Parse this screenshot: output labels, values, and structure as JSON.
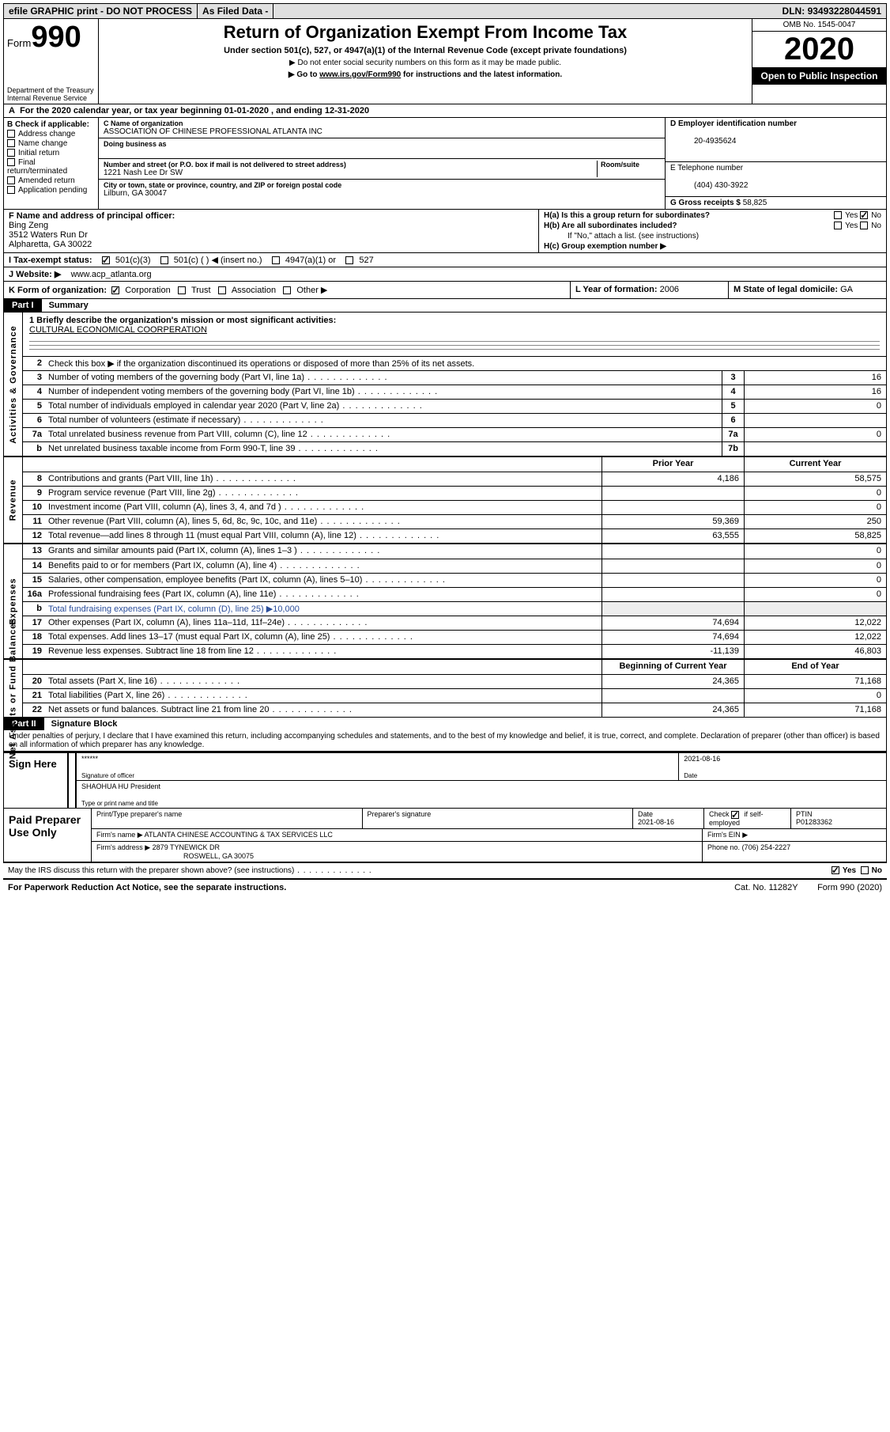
{
  "topbar": {
    "efile": "efile GRAPHIC print - DO NOT PROCESS",
    "asfiled": "As Filed Data -",
    "dln_label": "DLN:",
    "dln": "93493228044591"
  },
  "header": {
    "form": "Form",
    "num": "990",
    "dept": "Department of the Treasury\nInternal Revenue Service",
    "title": "Return of Organization Exempt From Income Tax",
    "sub": "Under section 501(c), 527, or 4947(a)(1) of the Internal Revenue Code (except private foundations)",
    "note1": "▶ Do not enter social security numbers on this form as it may be made public.",
    "note2_pre": "▶ Go to ",
    "note2_link": "www.irs.gov/Form990",
    "note2_post": " for instructions and the latest information.",
    "omb": "OMB No. 1545-0047",
    "year": "2020",
    "opi": "Open to Public Inspection"
  },
  "A": {
    "label": "A",
    "text": "For the 2020 calendar year, or tax year beginning 01-01-2020  , and ending 12-31-2020"
  },
  "B": {
    "label": "B Check if applicable:",
    "opts": [
      "Address change",
      "Name change",
      "Initial return",
      "Final return/terminated",
      "Amended return",
      "Application pending"
    ]
  },
  "C": {
    "namelbl": "C Name of organization",
    "name": "ASSOCIATION OF CHINESE PROFESSIONAL ATLANTA INC",
    "dba_lbl": "Doing business as",
    "addr_lbl": "Number and street (or P.O. box if mail is not delivered to street address)",
    "room_lbl": "Room/suite",
    "addr": "1221 Nash Lee Dr SW",
    "city_lbl": "City or town, state or province, country, and ZIP or foreign postal code",
    "city": "Lilburn, GA  30047"
  },
  "D": {
    "lbl": "D Employer identification number",
    "ein": "20-4935624"
  },
  "E": {
    "lbl": "E Telephone number",
    "val": "(404) 430-3922"
  },
  "G": {
    "lbl": "G Gross receipts $",
    "val": "58,825"
  },
  "F": {
    "lbl": "F  Name and address of principal officer:",
    "name": "Bing Zeng",
    "addr1": "3512 Waters Run Dr",
    "addr2": "Alpharetta, GA  30022"
  },
  "H": {
    "a": "H(a)  Is this a group return for subordinates?",
    "a_yes": "Yes",
    "a_no": "No",
    "b": "H(b)  Are all subordinates included?",
    "b_hint": "If \"No,\" attach a list. (see instructions)",
    "c": "H(c)  Group exemption number ▶"
  },
  "I": {
    "lbl": "I    Tax-exempt status:",
    "c3": "501(c)(3)",
    "c": "501(c) (  ) ◀ (insert no.)",
    "a1": "4947(a)(1) or",
    "s527": "527"
  },
  "J": {
    "lbl": "J    Website: ▶",
    "val": "www.acp_atlanta.org"
  },
  "K": {
    "lbl": "K Form of organization:",
    "opts": [
      "Corporation",
      "Trust",
      "Association",
      "Other ▶"
    ]
  },
  "L": {
    "lbl": "L Year of formation:",
    "val": "2006"
  },
  "M": {
    "lbl": "M State of legal domicile:",
    "val": "GA"
  },
  "partI": {
    "tag": "Part I",
    "name": "Summary"
  },
  "mission": {
    "q": "1 Briefly describe the organization's mission or most significant activities:",
    "a": "CULTURAL ECONOMICAL COORPERATION"
  },
  "gov": {
    "l2": "Check this box ▶       if the organization discontinued its operations or disposed of more than 25% of its net assets.",
    "l3": "Number of voting members of the governing body (Part VI, line 1a)",
    "l4": "Number of independent voting members of the governing body (Part VI, line 1b)",
    "l5": "Total number of individuals employed in calendar year 2020 (Part V, line 2a)",
    "l6": "Total number of volunteers (estimate if necessary)",
    "l7a": "Total unrelated business revenue from Part VIII, column (C), line 12",
    "l7b": "Net unrelated business taxable income from Form 990-T, line 39",
    "v3": "16",
    "v4": "16",
    "v5": "0",
    "v6": "",
    "v7a": "0",
    "v7b": ""
  },
  "revhdr": {
    "prior": "Prior Year",
    "curr": "Current Year"
  },
  "rev": [
    {
      "n": "8",
      "t": "Contributions and grants (Part VIII, line 1h)",
      "p": "4,186",
      "c": "58,575"
    },
    {
      "n": "9",
      "t": "Program service revenue (Part VIII, line 2g)",
      "p": "",
      "c": "0"
    },
    {
      "n": "10",
      "t": "Investment income (Part VIII, column (A), lines 3, 4, and 7d )",
      "p": "",
      "c": "0"
    },
    {
      "n": "11",
      "t": "Other revenue (Part VIII, column (A), lines 5, 6d, 8c, 9c, 10c, and 11e)",
      "p": "59,369",
      "c": "250"
    },
    {
      "n": "12",
      "t": "Total revenue—add lines 8 through 11 (must equal Part VIII, column (A), line 12)",
      "p": "63,555",
      "c": "58,825"
    }
  ],
  "exp": [
    {
      "n": "13",
      "t": "Grants and similar amounts paid (Part IX, column (A), lines 1–3 )",
      "p": "",
      "c": "0"
    },
    {
      "n": "14",
      "t": "Benefits paid to or for members (Part IX, column (A), line 4)",
      "p": "",
      "c": "0"
    },
    {
      "n": "15",
      "t": "Salaries, other compensation, employee benefits (Part IX, column (A), lines 5–10)",
      "p": "",
      "c": "0"
    },
    {
      "n": "16a",
      "t": "Professional fundraising fees (Part IX, column (A), line 11e)",
      "p": "",
      "c": "0"
    },
    {
      "n": "b",
      "t": "Total fundraising expenses (Part IX, column (D), line 25) ▶10,000",
      "p": null,
      "c": null,
      "blue": true
    },
    {
      "n": "17",
      "t": "Other expenses (Part IX, column (A), lines 11a–11d, 11f–24e)",
      "p": "74,694",
      "c": "12,022"
    },
    {
      "n": "18",
      "t": "Total expenses. Add lines 13–17 (must equal Part IX, column (A), line 25)",
      "p": "74,694",
      "c": "12,022"
    },
    {
      "n": "19",
      "t": "Revenue less expenses. Subtract line 18 from line 12",
      "p": "-11,139",
      "c": "46,803"
    }
  ],
  "nethdr": {
    "beg": "Beginning of Current Year",
    "end": "End of Year"
  },
  "net": [
    {
      "n": "20",
      "t": "Total assets (Part X, line 16)",
      "p": "24,365",
      "c": "71,168"
    },
    {
      "n": "21",
      "t": "Total liabilities (Part X, line 26)",
      "p": "",
      "c": "0"
    },
    {
      "n": "22",
      "t": "Net assets or fund balances. Subtract line 21 from line 20",
      "p": "24,365",
      "c": "71,168"
    }
  ],
  "partII": {
    "tag": "Part II",
    "name": "Signature Block"
  },
  "perjury": "Under penalties of perjury, I declare that I have examined this return, including accompanying schedules and statements, and to the best of my knowledge and belief, it is true, correct, and complete. Declaration of preparer (other than officer) is based on all information of which preparer has any knowledge.",
  "sign": {
    "label": "Sign Here",
    "stars": "******",
    "sig_lbl": "Signature of officer",
    "date": "2021-08-16",
    "date_lbl": "Date",
    "name": "SHAOHUA HU President",
    "name_lbl": "Type or print name and title"
  },
  "prep": {
    "label": "Paid Preparer Use Only",
    "h1": "Print/Type preparer's name",
    "h2": "Preparer's signature",
    "h3": "Date",
    "date": "2021-08-16",
    "h4a": "Check",
    "h4b": " if self-employed",
    "h5": "PTIN",
    "ptin": "P01283362",
    "firm_lbl": "Firm's name   ▶",
    "firm": "ATLANTA CHINESE ACCOUNTING & TAX SERVICES LLC",
    "ein_lbl": "Firm's EIN ▶",
    "addr_lbl": "Firm's address ▶",
    "addr1": "2879 TYNEWICK DR",
    "addr2": "ROSWELL, GA 30075",
    "phone_lbl": "Phone no.",
    "phone": "(706) 254-2227"
  },
  "discuss": {
    "q": "May the IRS discuss this return with the preparer shown above? (see instructions)",
    "yes": "Yes",
    "no": "No"
  },
  "footer": {
    "left": "For Paperwork Reduction Act Notice, see the separate instructions.",
    "mid": "Cat. No. 11282Y",
    "right": "Form 990 (2020)"
  },
  "sidelabels": {
    "gov": "Activities & Governance",
    "rev": "Revenue",
    "exp": "Expenses",
    "net": "Net Assets or Fund Balances"
  }
}
